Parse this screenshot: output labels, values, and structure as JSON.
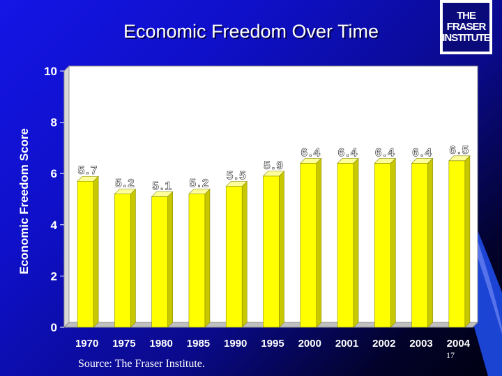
{
  "slide": {
    "title": "Economic Freedom Over Time",
    "source": "Source: The Fraser Institute.",
    "page_number": "17",
    "logo_text": "THE FRASER INSTITUTE"
  },
  "colors": {
    "bar": "#ffff00",
    "bar_side": "#c8c800",
    "plot_bg": "#ffffff",
    "text": "#ffffff"
  },
  "chart_data": {
    "type": "bar",
    "title": "Economic Freedom Over Time",
    "xlabel": "",
    "ylabel": "Economic Freedom Score",
    "categories": [
      "1970",
      "1975",
      "1980",
      "1985",
      "1990",
      "1995",
      "2000",
      "2001",
      "2002",
      "2003",
      "2004"
    ],
    "values": [
      5.7,
      5.2,
      5.1,
      5.2,
      5.5,
      5.9,
      6.4,
      6.4,
      6.4,
      6.4,
      6.5
    ],
    "data_labels": [
      "5.7",
      "5.2",
      "5.1",
      "5.2",
      "5.5",
      "5.9",
      "6.4",
      "6.4",
      "6.4",
      "6.4",
      "6.5"
    ],
    "ylim": [
      0,
      10
    ],
    "yticks": [
      "0",
      "2",
      "4",
      "6",
      "8",
      "10"
    ],
    "grid": false,
    "legend": "none"
  }
}
